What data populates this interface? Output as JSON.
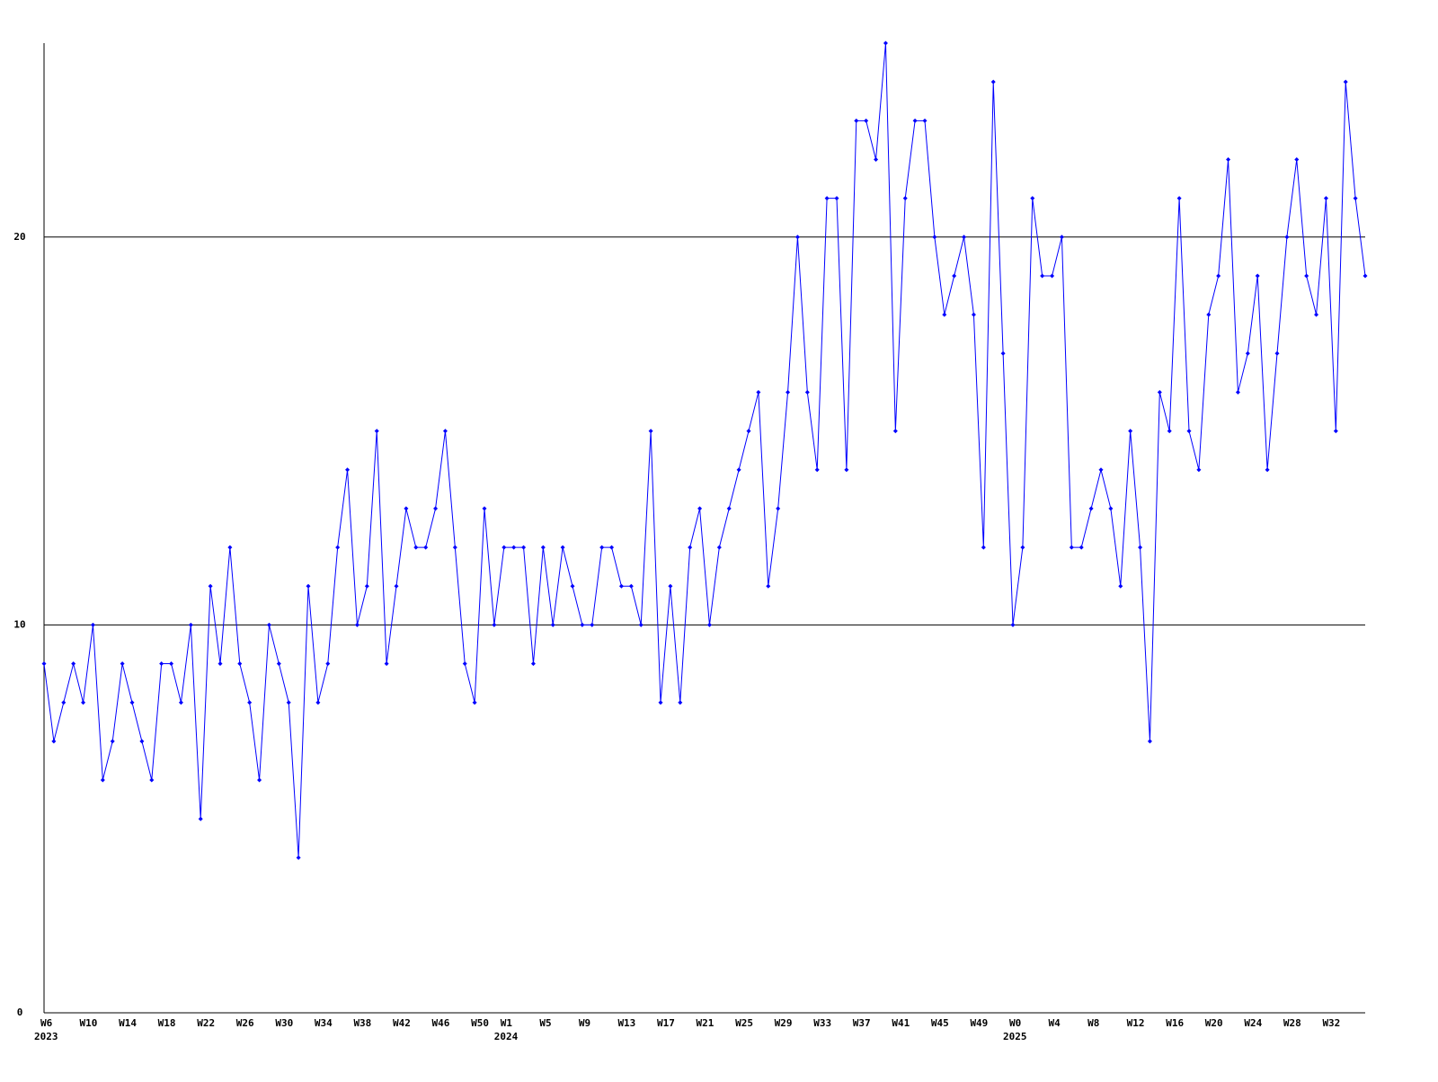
{
  "chart_data": {
    "type": "line",
    "categories": [
      "W6",
      null,
      null,
      null,
      "W10",
      null,
      null,
      null,
      "W14",
      null,
      null,
      null,
      "W18",
      null,
      null,
      null,
      "W22",
      null,
      null,
      null,
      "W26",
      null,
      null,
      null,
      "W30",
      null,
      null,
      null,
      "W34",
      null,
      null,
      null,
      "W38",
      null,
      null,
      null,
      "W42",
      null,
      null,
      null,
      "W46",
      null,
      null,
      null,
      "W50",
      null,
      null,
      "W1",
      null,
      null,
      null,
      "W5",
      null,
      null,
      null,
      "W9",
      null,
      null,
      null,
      "W13",
      null,
      null,
      null,
      "W17",
      null,
      null,
      null,
      "W21",
      null,
      null,
      null,
      "W25",
      null,
      null,
      null,
      "W29",
      null,
      null,
      null,
      "W33",
      null,
      null,
      null,
      "W37",
      null,
      null,
      null,
      "W41",
      null,
      null,
      null,
      "W45",
      null,
      null,
      null,
      "W49",
      null,
      null,
      null,
      "W0",
      null,
      null,
      null,
      "W4",
      null,
      null,
      null,
      "W8",
      null,
      null,
      null,
      "W12",
      null,
      null,
      null,
      "W16",
      null,
      null,
      null,
      "W20",
      null,
      null,
      null,
      "W24",
      null,
      null,
      null,
      "W28",
      null,
      null,
      null,
      "W32",
      null,
      null,
      null,
      null
    ],
    "year_labels": [
      "2023",
      null,
      null,
      null,
      null,
      null,
      null,
      null,
      null,
      null,
      null,
      null,
      null,
      null,
      null,
      null,
      null,
      null,
      null,
      null,
      null,
      null,
      null,
      null,
      null,
      null,
      null,
      null,
      null,
      null,
      null,
      null,
      null,
      null,
      null,
      null,
      null,
      null,
      null,
      null,
      null,
      null,
      null,
      null,
      null,
      null,
      null,
      "2024",
      null,
      null,
      null,
      null,
      null,
      null,
      null,
      null,
      null,
      null,
      null,
      null,
      null,
      null,
      null,
      null,
      null,
      null,
      null,
      null,
      null,
      null,
      null,
      null,
      null,
      null,
      null,
      null,
      null,
      null,
      null,
      null,
      null,
      null,
      null,
      null,
      null,
      null,
      null,
      null,
      null,
      null,
      null,
      null,
      null,
      null,
      null,
      null,
      null,
      null,
      null,
      "2025",
      null,
      null,
      null,
      null,
      null,
      null,
      null,
      null,
      null,
      null,
      null,
      null,
      null,
      null,
      null,
      null,
      null,
      null,
      null,
      null,
      null,
      null,
      null,
      null,
      null,
      null,
      null,
      null,
      null,
      null,
      null,
      null,
      null,
      null,
      null,
      null
    ],
    "series": [
      {
        "color": "#0000ff",
        "values": [
          9,
          7,
          8,
          9,
          8,
          10,
          6,
          7,
          9,
          8,
          7,
          6,
          9,
          9,
          8,
          10,
          5,
          11,
          9,
          12,
          9,
          8,
          6,
          10,
          9,
          8,
          4,
          11,
          8,
          9,
          12,
          14,
          10,
          11,
          15,
          9,
          11,
          13,
          12,
          12,
          13,
          15,
          12,
          9,
          8,
          13,
          10,
          12,
          12,
          12,
          9,
          12,
          10,
          12,
          11,
          10,
          10,
          12,
          12,
          11,
          11,
          10,
          15,
          8,
          11,
          8,
          12,
          13,
          10,
          12,
          13,
          14,
          15,
          16,
          11,
          13,
          16,
          20,
          16,
          14,
          21,
          21,
          14,
          23,
          23,
          22,
          25,
          15,
          21,
          23,
          23,
          20,
          18,
          19,
          20,
          18,
          12,
          24,
          17,
          10,
          12,
          21,
          19,
          19,
          20,
          12,
          12,
          13,
          14,
          13,
          11,
          15,
          12,
          7,
          16,
          15,
          21,
          15,
          14,
          18,
          19,
          22,
          16,
          17,
          19,
          14,
          17,
          20,
          22,
          19,
          18,
          21,
          15,
          24,
          21,
          19
        ]
      }
    ],
    "ylim": [
      0,
      25
    ],
    "yticks": [
      0,
      10,
      20
    ],
    "grid": true
  }
}
